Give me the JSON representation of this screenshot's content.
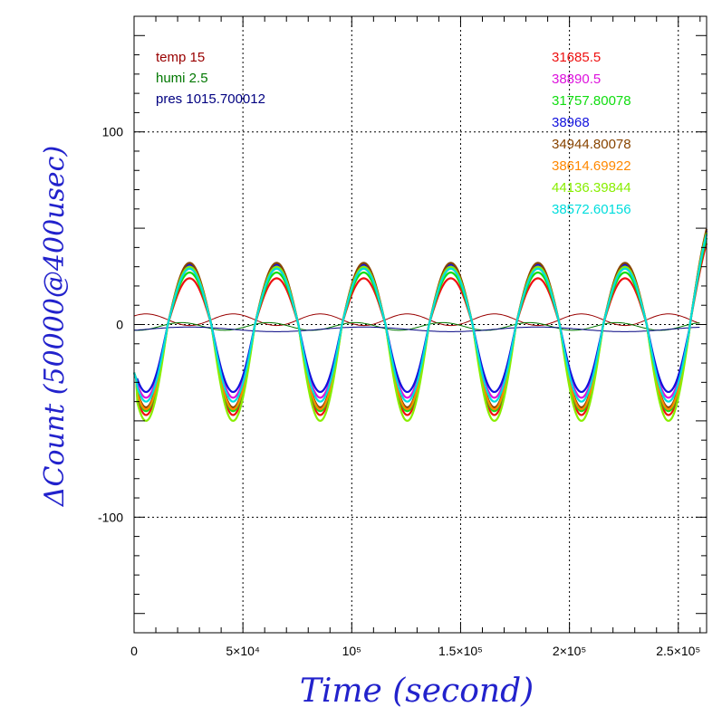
{
  "chart_data": {
    "type": "line",
    "xlabel": "Time (second)",
    "ylabel": "ΔCount (50000@400usec)",
    "xlim": [
      0,
      263000
    ],
    "ylim": [
      -160,
      160
    ],
    "x_ticks": [
      {
        "value": 0,
        "label": "0"
      },
      {
        "value": 50000,
        "label": "5×10⁴"
      },
      {
        "value": 100000,
        "label": "10⁵"
      },
      {
        "value": 150000,
        "label": "1.5×10⁵"
      },
      {
        "value": 200000,
        "label": "2×10⁵"
      },
      {
        "value": 250000,
        "label": "2.5×10⁵"
      }
    ],
    "y_ticks": [
      {
        "value": 100,
        "label": "100"
      },
      {
        "value": 0,
        "label": "0"
      },
      {
        "value": -100,
        "label": "-100"
      }
    ],
    "grid": true,
    "legend_placement": "top-left and top-right",
    "env_legend": [
      {
        "label": "temp 15",
        "color": "#990000"
      },
      {
        "label": "humi 2.5",
        "color": "#007700"
      },
      {
        "label": "pres 1015.700012",
        "color": "#000080"
      }
    ],
    "series": [
      {
        "name": "31685.5",
        "color": "#ee1111",
        "amp_pos": 24,
        "amp_neg": 47,
        "offset": 0
      },
      {
        "name": "38890.5",
        "color": "#dd11dd",
        "amp_pos": 29,
        "amp_neg": 38,
        "offset": 0
      },
      {
        "name": "31757.80078",
        "color": "#11dd11",
        "amp_pos": 27,
        "amp_neg": 45,
        "offset": 0
      },
      {
        "name": "38968",
        "color": "#1111dd",
        "amp_pos": 31,
        "amp_neg": 35,
        "offset": 0
      },
      {
        "name": "34944.80078",
        "color": "#884400",
        "amp_pos": 32,
        "amp_neg": 43,
        "offset": 0
      },
      {
        "name": "38614.69922",
        "color": "#ff8800",
        "amp_pos": 30,
        "amp_neg": 44,
        "offset": 0
      },
      {
        "name": "44136.39844",
        "color": "#88ee00",
        "amp_pos": 30,
        "amp_neg": 50,
        "offset": 0
      },
      {
        "name": "38572.60156",
        "color": "#00dddd",
        "amp_pos": 29,
        "amp_neg": 40,
        "offset": 0
      }
    ],
    "oscillation_period_s": 40000,
    "first_peak_s": 25500,
    "env_series": [
      {
        "name": "temp",
        "color": "#990000",
        "kind": "temp"
      },
      {
        "name": "humi",
        "color": "#007700",
        "kind": "humi"
      },
      {
        "name": "pres",
        "color": "#000080",
        "kind": "pres"
      }
    ]
  }
}
